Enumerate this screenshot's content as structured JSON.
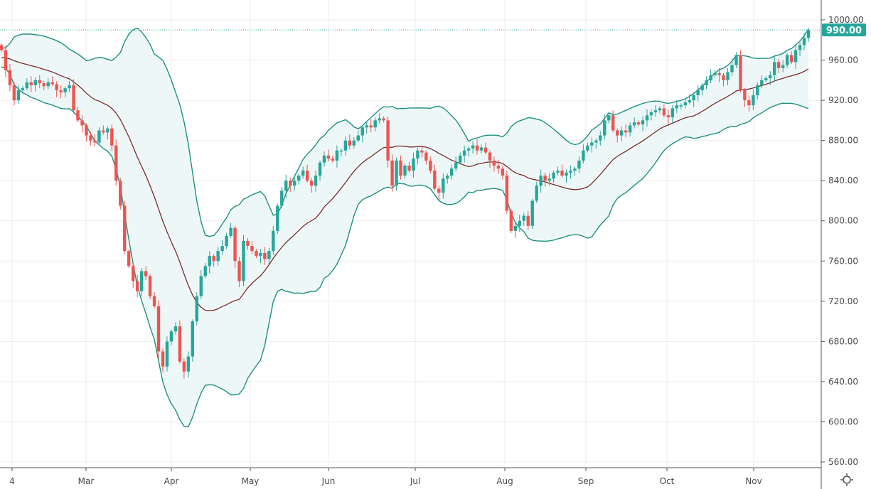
{
  "chart_data": {
    "type": "candlestick",
    "title": "",
    "indicator": {
      "name": "Bollinger Bands",
      "period": 20,
      "stddev": 2
    },
    "y_ticks": [
      "1000.00",
      "960.00",
      "920.00",
      "880.00",
      "840.00",
      "800.00",
      "760.00",
      "720.00",
      "680.00",
      "640.00",
      "600.00",
      "560.00"
    ],
    "ylim": [
      555,
      1010
    ],
    "x_ticks": [
      "4",
      "Mar",
      "Apr",
      "May",
      "Jun",
      "Jul",
      "Aug",
      "Sep",
      "Oct",
      "Nov"
    ],
    "last_price_label": "990.00",
    "last_price": 990,
    "grid": true,
    "colors": {
      "up": "#26a69a",
      "down": "#ef5350",
      "band": "#1e9080",
      "basis": "#7a2b2b",
      "band_fill": "#eef7f7",
      "price_tag": "#26a69a"
    },
    "closes": [
      970,
      950,
      935,
      920,
      930,
      932,
      938,
      935,
      940,
      937,
      934,
      938,
      936,
      930,
      928,
      932,
      935,
      910,
      900,
      895,
      885,
      880,
      878,
      890,
      888,
      892,
      875,
      840,
      815,
      770,
      755,
      740,
      730,
      750,
      745,
      725,
      715,
      670,
      655,
      680,
      690,
      695,
      660,
      650,
      665,
      700,
      725,
      745,
      755,
      765,
      760,
      770,
      775,
      785,
      793,
      760,
      740,
      780,
      775,
      770,
      765,
      768,
      762,
      770,
      790,
      815,
      830,
      840,
      835,
      840,
      845,
      850,
      840,
      835,
      845,
      858,
      865,
      862,
      860,
      870,
      870,
      880,
      875,
      880,
      885,
      893,
      895,
      893,
      900,
      902,
      900,
      860,
      835,
      860,
      845,
      855,
      850,
      862,
      870,
      868,
      860,
      850,
      832,
      828,
      842,
      845,
      852,
      858,
      865,
      870,
      872,
      875,
      870,
      873,
      868,
      860,
      855,
      852,
      845,
      810,
      790,
      795,
      800,
      805,
      795,
      820,
      835,
      845,
      840,
      842,
      848,
      850,
      845,
      848,
      850,
      852,
      860,
      870,
      875,
      878,
      880,
      885,
      900,
      905,
      890,
      885,
      890,
      888,
      895,
      898,
      896,
      900,
      905,
      908,
      910,
      912,
      905,
      903,
      912,
      915,
      915,
      918,
      920,
      925,
      930,
      935,
      940,
      945,
      947,
      945,
      940,
      948,
      955,
      965,
      930,
      920,
      915,
      925,
      935,
      940,
      942,
      945,
      958,
      952,
      955,
      965,
      958,
      970,
      975,
      982,
      990
    ]
  },
  "toolbar": {
    "settings_icon": "sun-gear-icon"
  }
}
